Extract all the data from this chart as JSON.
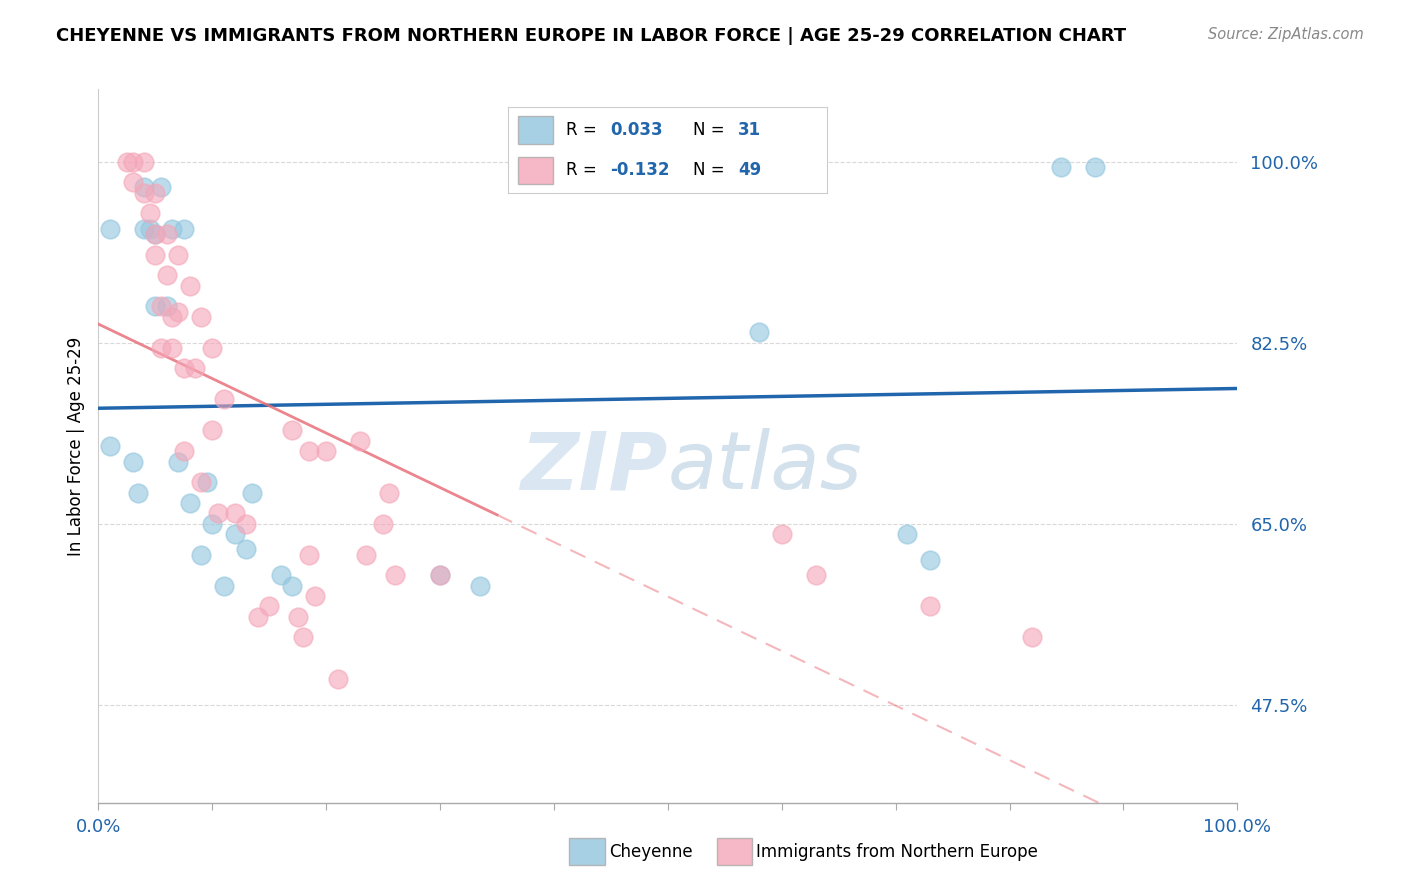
{
  "title": "CHEYENNE VS IMMIGRANTS FROM NORTHERN EUROPE IN LABOR FORCE | AGE 25-29 CORRELATION CHART",
  "source": "Source: ZipAtlas.com",
  "ylabel": "In Labor Force | Age 25-29",
  "xlim": [
    0.0,
    1.0
  ],
  "ylim": [
    0.38,
    1.07
  ],
  "yticks": [
    0.475,
    0.65,
    0.825,
    1.0
  ],
  "ytick_labels": [
    "47.5%",
    "65.0%",
    "82.5%",
    "100.0%"
  ],
  "xtick_labels": [
    "0.0%",
    "100.0%"
  ],
  "legend_label1": "Cheyenne",
  "legend_label2": "Immigrants from Northern Europe",
  "r1": "0.033",
  "n1": "31",
  "r2": "-0.132",
  "n2": "49",
  "watermark_zip": "ZIP",
  "watermark_atlas": "atlas",
  "blue_color": "#92c5de",
  "pink_color": "#f4a6b8",
  "blue_line_color": "#2166ac",
  "pink_line_color": "#e8707a",
  "blue_scatter": [
    [
      0.01,
      0.725
    ],
    [
      0.01,
      0.935
    ],
    [
      0.03,
      0.71
    ],
    [
      0.035,
      0.68
    ],
    [
      0.04,
      0.935
    ],
    [
      0.04,
      0.975
    ],
    [
      0.045,
      0.935
    ],
    [
      0.05,
      0.86
    ],
    [
      0.05,
      0.93
    ],
    [
      0.055,
      0.975
    ],
    [
      0.06,
      0.86
    ],
    [
      0.065,
      0.935
    ],
    [
      0.07,
      0.71
    ],
    [
      0.075,
      0.935
    ],
    [
      0.08,
      0.67
    ],
    [
      0.09,
      0.62
    ],
    [
      0.095,
      0.69
    ],
    [
      0.1,
      0.65
    ],
    [
      0.11,
      0.59
    ],
    [
      0.12,
      0.64
    ],
    [
      0.13,
      0.625
    ],
    [
      0.135,
      0.68
    ],
    [
      0.16,
      0.6
    ],
    [
      0.17,
      0.59
    ],
    [
      0.3,
      0.6
    ],
    [
      0.335,
      0.59
    ],
    [
      0.58,
      0.835
    ],
    [
      0.71,
      0.64
    ],
    [
      0.73,
      0.615
    ],
    [
      0.845,
      0.995
    ],
    [
      0.875,
      0.995
    ]
  ],
  "pink_scatter": [
    [
      0.025,
      1.0
    ],
    [
      0.03,
      1.0
    ],
    [
      0.03,
      0.98
    ],
    [
      0.04,
      1.0
    ],
    [
      0.04,
      0.97
    ],
    [
      0.045,
      0.95
    ],
    [
      0.05,
      0.97
    ],
    [
      0.05,
      0.93
    ],
    [
      0.05,
      0.91
    ],
    [
      0.055,
      0.86
    ],
    [
      0.055,
      0.82
    ],
    [
      0.06,
      0.93
    ],
    [
      0.06,
      0.89
    ],
    [
      0.065,
      0.85
    ],
    [
      0.065,
      0.82
    ],
    [
      0.07,
      0.91
    ],
    [
      0.07,
      0.855
    ],
    [
      0.075,
      0.8
    ],
    [
      0.075,
      0.72
    ],
    [
      0.08,
      0.88
    ],
    [
      0.085,
      0.8
    ],
    [
      0.09,
      0.85
    ],
    [
      0.09,
      0.69
    ],
    [
      0.1,
      0.82
    ],
    [
      0.1,
      0.74
    ],
    [
      0.105,
      0.66
    ],
    [
      0.11,
      0.77
    ],
    [
      0.12,
      0.66
    ],
    [
      0.13,
      0.65
    ],
    [
      0.14,
      0.56
    ],
    [
      0.15,
      0.57
    ],
    [
      0.17,
      0.74
    ],
    [
      0.175,
      0.56
    ],
    [
      0.18,
      0.54
    ],
    [
      0.185,
      0.62
    ],
    [
      0.19,
      0.58
    ],
    [
      0.2,
      0.72
    ],
    [
      0.21,
      0.5
    ],
    [
      0.23,
      0.73
    ],
    [
      0.235,
      0.62
    ],
    [
      0.25,
      0.65
    ],
    [
      0.255,
      0.68
    ],
    [
      0.26,
      0.6
    ],
    [
      0.3,
      0.6
    ],
    [
      0.185,
      0.72
    ],
    [
      0.6,
      0.64
    ],
    [
      0.63,
      0.6
    ],
    [
      0.73,
      0.57
    ],
    [
      0.82,
      0.54
    ]
  ],
  "background_color": "#ffffff",
  "grid_color": "#d0d0d0"
}
